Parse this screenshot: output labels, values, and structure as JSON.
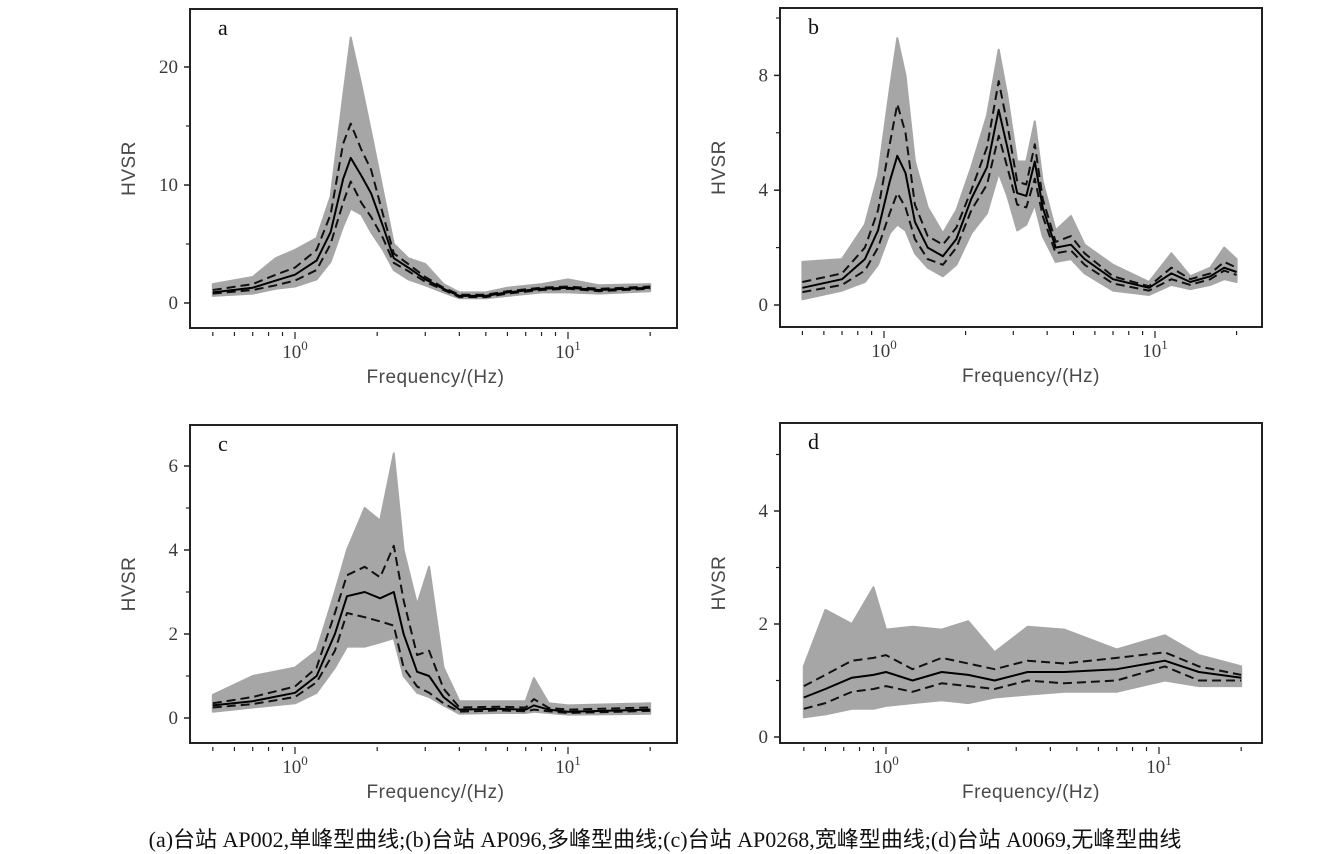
{
  "caption": "(a)台站 AP002,单峰型曲线;(b)台站 AP096,多峰型曲线;(c)台站 AP0268,宽峰型曲线;(d)台站 A0069,无峰型曲线",
  "colors": {
    "individual": "#a6a6a6",
    "mean": "#000000",
    "std": "#111111",
    "frame": "#222222"
  },
  "chart_data": [
    {
      "type": "line",
      "panel": "a",
      "xlabel": "Frequency/(Hz)",
      "ylabel": "HVSR",
      "xscale": "log",
      "xlim": [
        0.5,
        20
      ],
      "ylim": [
        -2.1,
        24.7
      ],
      "xticks": [
        {
          "value": 1,
          "base": "10",
          "exp": "0"
        },
        {
          "value": 10,
          "base": "10",
          "exp": "1"
        }
      ],
      "yticks": [
        0,
        10,
        20
      ],
      "yticks_minor": [
        5,
        15
      ],
      "freq": [
        0.5,
        0.7,
        0.85,
        1.0,
        1.2,
        1.35,
        1.5,
        1.6,
        1.75,
        1.9,
        2.1,
        2.3,
        2.6,
        3.0,
        3.5,
        4.0,
        5.0,
        6.0,
        8.0,
        10,
        13,
        20
      ],
      "mean": [
        0.9,
        1.3,
        1.9,
        2.4,
        3.6,
        6.0,
        10.5,
        12.3,
        10.8,
        9.3,
        6.5,
        3.8,
        3.0,
        2.0,
        1.2,
        0.6,
        0.6,
        0.9,
        1.2,
        1.3,
        1.1,
        1.3
      ],
      "upper": [
        1.1,
        1.6,
        2.4,
        3.0,
        4.5,
        7.5,
        13.5,
        15.2,
        13.0,
        11.3,
        7.5,
        4.2,
        3.3,
        2.2,
        1.3,
        0.7,
        0.7,
        1.0,
        1.3,
        1.4,
        1.2,
        1.4
      ],
      "lower": [
        0.8,
        1.1,
        1.5,
        1.9,
        2.8,
        5.0,
        8.5,
        10.3,
        8.5,
        7.3,
        5.5,
        3.4,
        2.7,
        1.8,
        1.1,
        0.5,
        0.5,
        0.8,
        1.1,
        1.2,
        1.0,
        1.2
      ],
      "env_min": [
        0.6,
        0.8,
        1.2,
        1.4,
        2.0,
        3.5,
        6.5,
        8.0,
        7.5,
        6.0,
        4.5,
        2.8,
        2.0,
        1.5,
        0.9,
        0.4,
        0.4,
        0.6,
        0.9,
        0.9,
        0.8,
        1.0
      ],
      "env_max": [
        1.6,
        2.2,
        3.8,
        4.5,
        5.5,
        9.0,
        17.5,
        22.5,
        18.5,
        14.5,
        9.5,
        5.0,
        3.8,
        3.3,
        1.6,
        0.9,
        0.9,
        1.3,
        1.6,
        2.0,
        1.5,
        1.6
      ]
    },
    {
      "type": "line",
      "panel": "b",
      "xlabel": "Frequency/(Hz)",
      "ylabel": "HVSR",
      "xscale": "log",
      "xlim": [
        0.5,
        20
      ],
      "ylim": [
        -0.77,
        10.35
      ],
      "xticks": [
        {
          "value": 1,
          "base": "10",
          "exp": "0"
        },
        {
          "value": 10,
          "base": "10",
          "exp": "1"
        }
      ],
      "yticks": [
        0,
        4,
        8
      ],
      "yticks_minor": [
        2,
        6,
        10
      ],
      "freq": [
        0.5,
        0.7,
        0.85,
        0.95,
        1.05,
        1.12,
        1.2,
        1.3,
        1.45,
        1.65,
        1.85,
        2.1,
        2.4,
        2.65,
        2.85,
        3.1,
        3.35,
        3.6,
        3.85,
        4.3,
        4.9,
        5.5,
        7.0,
        9.5,
        11.5,
        13.5,
        16,
        18,
        20
      ],
      "mean": [
        0.6,
        0.9,
        1.6,
        2.6,
        4.3,
        5.2,
        4.6,
        2.9,
        2.0,
        1.7,
        2.3,
        3.7,
        4.8,
        6.8,
        5.5,
        3.9,
        3.8,
        5.0,
        3.4,
        2.0,
        2.1,
        1.6,
        0.9,
        0.6,
        1.1,
        0.8,
        1.0,
        1.3,
        1.15
      ],
      "upper": [
        0.8,
        1.1,
        2.0,
        3.3,
        5.6,
        7.0,
        6.0,
        3.5,
        2.4,
        2.1,
        2.7,
        4.0,
        5.5,
        7.8,
        6.3,
        4.3,
        4.2,
        5.6,
        3.7,
        2.2,
        2.4,
        1.8,
        1.0,
        0.65,
        1.3,
        0.9,
        1.1,
        1.5,
        1.3
      ],
      "lower": [
        0.45,
        0.7,
        1.2,
        2.0,
        3.2,
        3.9,
        3.4,
        2.3,
        1.6,
        1.4,
        2.0,
        3.3,
        4.2,
        5.9,
        4.8,
        3.5,
        3.4,
        4.4,
        3.1,
        1.8,
        1.9,
        1.4,
        0.75,
        0.5,
        0.9,
        0.7,
        0.9,
        1.2,
        1.05
      ],
      "env_min": [
        0.2,
        0.5,
        0.8,
        1.4,
        2.5,
        2.8,
        2.6,
        1.8,
        1.3,
        1.0,
        1.4,
        2.5,
        3.2,
        4.6,
        3.8,
        2.6,
        2.8,
        3.5,
        2.4,
        1.5,
        1.6,
        1.1,
        0.5,
        0.35,
        0.7,
        0.55,
        0.7,
        0.9,
        0.8
      ],
      "env_max": [
        1.5,
        1.6,
        2.8,
        4.5,
        7.5,
        9.3,
        8.0,
        5.0,
        3.4,
        2.5,
        3.3,
        4.8,
        6.6,
        8.9,
        7.3,
        5.0,
        5.0,
        6.4,
        4.3,
        2.6,
        3.1,
        2.1,
        1.4,
        0.8,
        1.8,
        1.0,
        1.3,
        2.0,
        1.6
      ]
    },
    {
      "type": "line",
      "panel": "c",
      "xlabel": "Frequency/(Hz)",
      "ylabel": "HVSR",
      "xscale": "log",
      "xlim": [
        0.5,
        20
      ],
      "ylim": [
        -0.6,
        7.0
      ],
      "xticks": [
        {
          "value": 1,
          "base": "10",
          "exp": "0"
        },
        {
          "value": 10,
          "base": "10",
          "exp": "1"
        }
      ],
      "yticks": [
        0,
        2,
        4,
        6
      ],
      "yticks_minor": [
        1,
        3,
        5
      ],
      "freq": [
        0.5,
        0.7,
        1.0,
        1.2,
        1.4,
        1.55,
        1.8,
        2.05,
        2.3,
        2.5,
        2.8,
        3.1,
        3.5,
        4.0,
        5.5,
        7.0,
        7.5,
        8.5,
        10,
        20
      ],
      "mean": [
        0.3,
        0.4,
        0.6,
        1.0,
        2.0,
        2.9,
        3.0,
        2.85,
        3.0,
        2.0,
        1.1,
        1.0,
        0.5,
        0.2,
        0.22,
        0.2,
        0.3,
        0.2,
        0.15,
        0.2
      ],
      "upper": [
        0.35,
        0.5,
        0.75,
        1.2,
        2.5,
        3.4,
        3.6,
        3.35,
        4.1,
        2.8,
        1.5,
        1.6,
        0.7,
        0.25,
        0.27,
        0.25,
        0.45,
        0.24,
        0.2,
        0.25
      ],
      "lower": [
        0.25,
        0.33,
        0.5,
        0.85,
        1.6,
        2.5,
        2.4,
        2.3,
        2.2,
        1.2,
        0.75,
        0.6,
        0.35,
        0.15,
        0.18,
        0.16,
        0.2,
        0.16,
        0.12,
        0.17
      ],
      "env_min": [
        0.15,
        0.25,
        0.35,
        0.6,
        1.2,
        1.7,
        1.7,
        1.8,
        1.9,
        1.0,
        0.6,
        0.5,
        0.3,
        0.1,
        0.12,
        0.12,
        0.15,
        0.12,
        0.08,
        0.1
      ],
      "env_max": [
        0.55,
        1.0,
        1.2,
        1.6,
        3.0,
        4.0,
        5.0,
        4.7,
        6.3,
        4.0,
        2.7,
        3.6,
        1.2,
        0.4,
        0.4,
        0.4,
        0.95,
        0.35,
        0.3,
        0.35
      ]
    },
    {
      "type": "line",
      "panel": "d",
      "xlabel": "Frequency/(Hz)",
      "ylabel": "HVSR",
      "xscale": "log",
      "xlim": [
        0.5,
        20
      ],
      "ylim": [
        -0.1,
        5.56
      ],
      "xticks": [
        {
          "value": 1,
          "base": "10",
          "exp": "0"
        },
        {
          "value": 10,
          "base": "10",
          "exp": "1"
        }
      ],
      "yticks": [
        0,
        2,
        4
      ],
      "yticks_minor": [
        1,
        3,
        5
      ],
      "freq": [
        0.5,
        0.6,
        0.75,
        0.9,
        1.0,
        1.25,
        1.6,
        2.0,
        2.5,
        3.3,
        4.5,
        7.0,
        10.5,
        14,
        20
      ],
      "mean": [
        0.7,
        0.85,
        1.05,
        1.1,
        1.15,
        1.0,
        1.15,
        1.1,
        1.0,
        1.15,
        1.15,
        1.2,
        1.35,
        1.15,
        1.05
      ],
      "upper": [
        0.9,
        1.1,
        1.35,
        1.4,
        1.45,
        1.2,
        1.4,
        1.3,
        1.2,
        1.35,
        1.3,
        1.4,
        1.5,
        1.25,
        1.1
      ],
      "lower": [
        0.5,
        0.6,
        0.8,
        0.85,
        0.9,
        0.8,
        0.95,
        0.9,
        0.85,
        1.0,
        0.95,
        1.0,
        1.25,
        1.0,
        1.0
      ],
      "env_min": [
        0.35,
        0.4,
        0.5,
        0.5,
        0.55,
        0.6,
        0.65,
        0.6,
        0.7,
        0.75,
        0.8,
        0.8,
        1.0,
        0.9,
        0.9
      ],
      "env_max": [
        1.25,
        2.25,
        2.0,
        2.65,
        1.9,
        1.95,
        1.9,
        2.05,
        1.5,
        1.95,
        1.9,
        1.55,
        1.8,
        1.45,
        1.25
      ]
    }
  ]
}
